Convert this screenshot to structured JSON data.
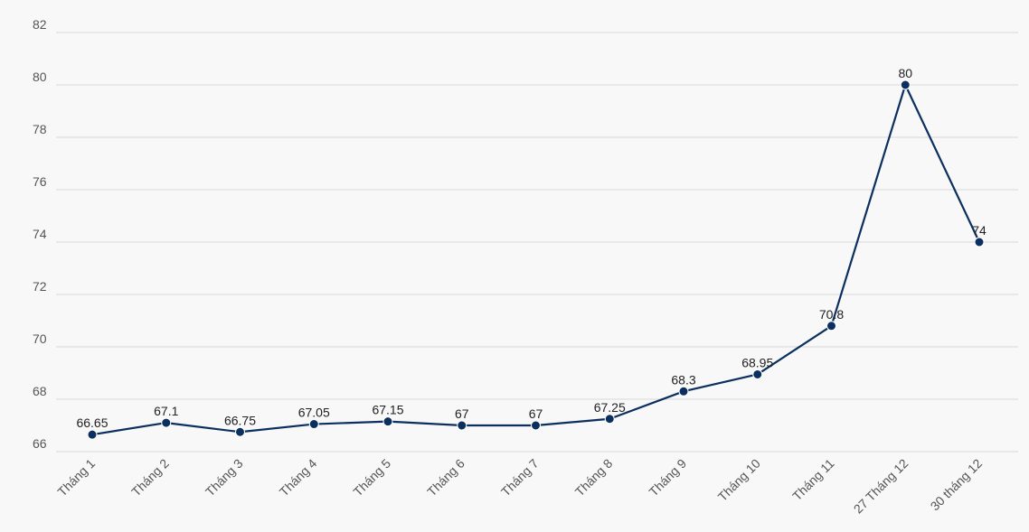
{
  "chart_data": {
    "type": "line",
    "title": "",
    "xlabel": "",
    "ylabel": "",
    "categories": [
      "Tháng 1",
      "Tháng 2",
      "Tháng 3",
      "Tháng 4",
      "Tháng 5",
      "Tháng 6",
      "Tháng 7",
      "Tháng 8",
      "Tháng 9",
      "Tháng 10",
      "Tháng 11",
      "27 Tháng 12",
      "30 tháng 12"
    ],
    "series": [
      {
        "values": [
          66.65,
          67.1,
          66.75,
          67.05,
          67.15,
          67,
          67,
          67.25,
          68.3,
          68.95,
          70.8,
          80,
          74
        ],
        "color": "#0b2f5e"
      }
    ],
    "ylim": [
      66,
      82
    ],
    "yticks": [
      66,
      68,
      70,
      72,
      74,
      76,
      78,
      80,
      82
    ],
    "grid": true,
    "legend": "none"
  }
}
